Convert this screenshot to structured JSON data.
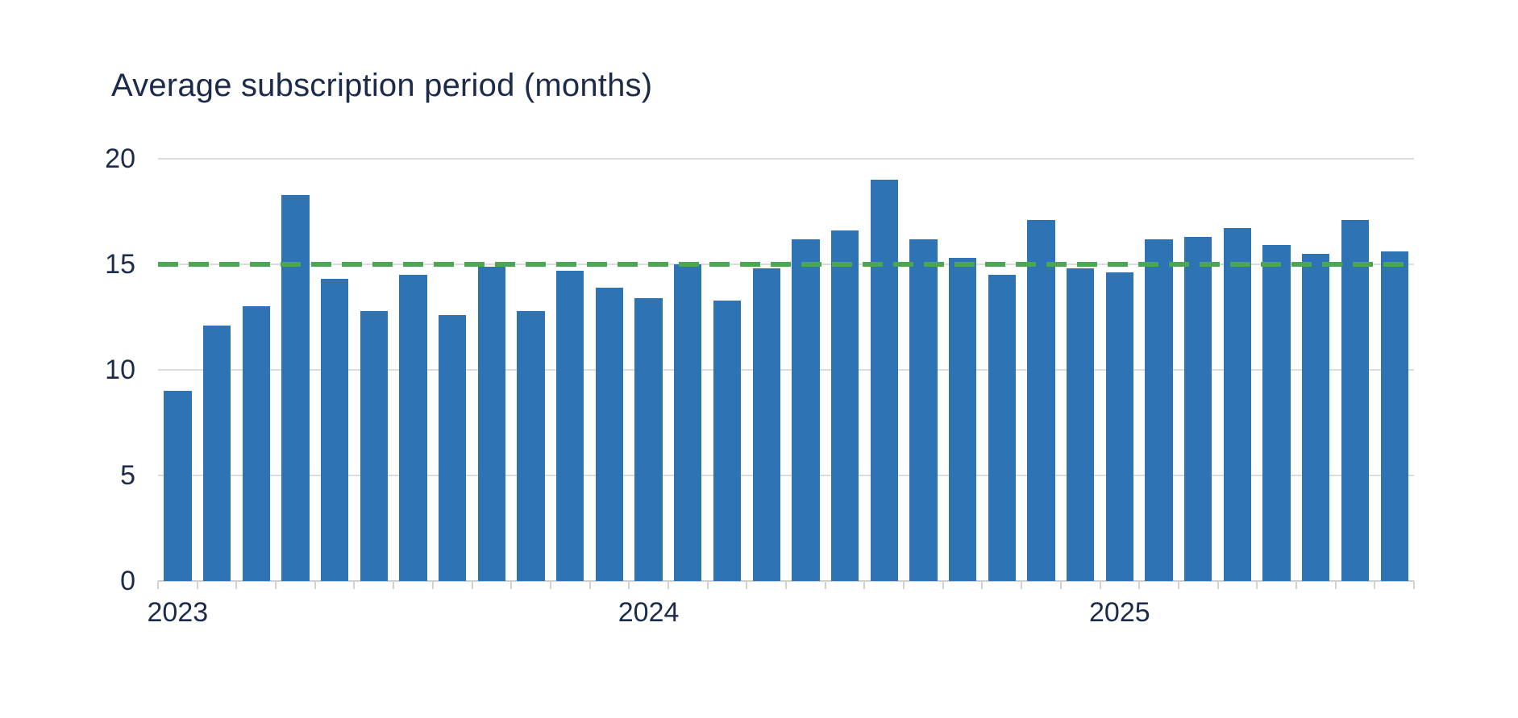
{
  "chart_data": {
    "type": "bar",
    "title": "Average subscription period (months)",
    "xlabel": "",
    "ylabel": "",
    "ylim": [
      0,
      20
    ],
    "yticks": [
      0,
      5,
      10,
      15,
      20
    ],
    "grid": "horizontal",
    "legend": "none",
    "categories": [
      "2023-01",
      "2023-02",
      "2023-03",
      "2023-04",
      "2023-05",
      "2023-06",
      "2023-07",
      "2023-08",
      "2023-09",
      "2023-10",
      "2023-11",
      "2023-12",
      "2024-01",
      "2024-02",
      "2024-03",
      "2024-04",
      "2024-05",
      "2024-06",
      "2024-07",
      "2024-08",
      "2024-09",
      "2024-10",
      "2024-11",
      "2024-12",
      "2025-01",
      "2025-02",
      "2025-03",
      "2025-04",
      "2025-05",
      "2025-06",
      "2025-07",
      "2025-08"
    ],
    "values": [
      9.0,
      12.1,
      13.0,
      18.3,
      14.3,
      12.8,
      14.5,
      12.6,
      14.9,
      12.8,
      14.7,
      13.9,
      13.4,
      15.0,
      13.3,
      14.8,
      16.2,
      16.6,
      19.0,
      16.2,
      15.3,
      14.5,
      17.1,
      14.8,
      14.6,
      16.2,
      16.3,
      16.7,
      15.9,
      15.5,
      17.1,
      15.6
    ],
    "x_year_labels": [
      {
        "label": "2023",
        "slot": 0
      },
      {
        "label": "2024",
        "slot": 12
      },
      {
        "label": "2025",
        "slot": 24
      }
    ],
    "reference_line": {
      "value": 15,
      "style": "dashed",
      "color": "#4CA654"
    },
    "colors": {
      "bar": "#2E74B5",
      "reference": "#4CA654",
      "gridline": "#DCDCDC",
      "axis_line": "#CFCFCF",
      "text": "#1C2B4A",
      "background": "#FFFFFF"
    }
  }
}
